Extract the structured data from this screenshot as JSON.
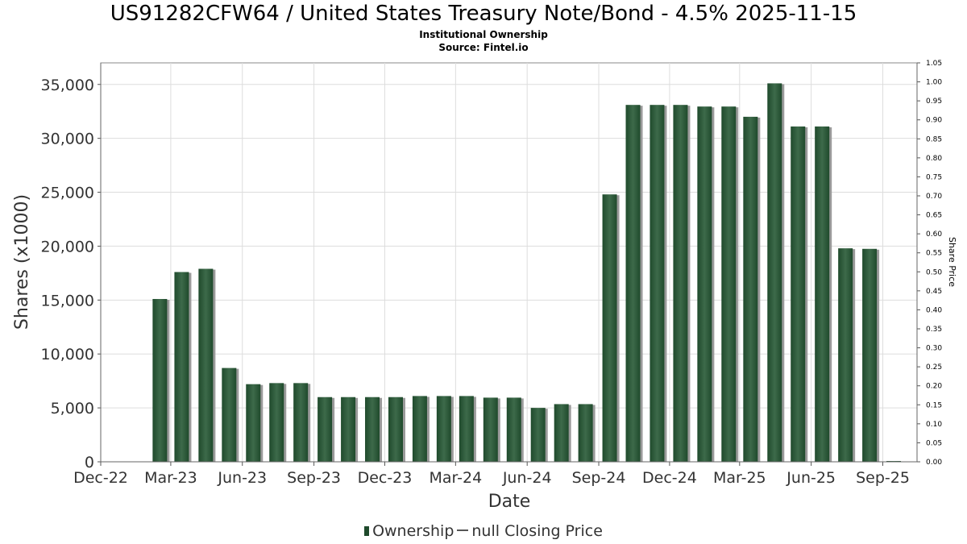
{
  "title": "US91282CFW64 / United States Treasury Note/Bond - 4.5% 2025-11-15",
  "subtitle": "Institutional Ownership",
  "source": "Source: Fintel.io",
  "legend": {
    "ownership": "Ownership",
    "price": "null Closing Price"
  },
  "colors": {
    "bar": "#1f4a2c",
    "bar_highlight": "#3d6a4a",
    "bar_shadow": "#9a9a9a",
    "grid": "#dddddd"
  },
  "chart_data": {
    "type": "bar",
    "xlabel": "Date",
    "ylabel": "Shares (x1000)",
    "y2label": "Share Price",
    "ylim": [
      0,
      37000
    ],
    "y2lim": [
      0,
      1.05
    ],
    "yticks": [
      "0",
      "5,000",
      "10,000",
      "15,000",
      "20,000",
      "25,000",
      "30,000",
      "35,000"
    ],
    "y2ticks": [
      "0.00",
      "0.05",
      "0.10",
      "0.15",
      "0.20",
      "0.25",
      "0.30",
      "0.35",
      "0.40",
      "0.45",
      "0.50",
      "0.55",
      "0.60",
      "0.65",
      "0.70",
      "0.75",
      "0.80",
      "0.85",
      "0.90",
      "0.95",
      "1.00",
      "1.05"
    ],
    "xticks": [
      "Dec-22",
      "Mar-23",
      "Jun-23",
      "Sep-23",
      "Dec-23",
      "Mar-24",
      "Jun-24",
      "Sep-24",
      "Dec-24",
      "Mar-25",
      "Jun-25",
      "Sep-25"
    ],
    "xdomain": [
      "2022-12-01",
      "2025-10-15"
    ],
    "series": [
      {
        "name": "Ownership",
        "points": [
          {
            "date": "2023-02-15",
            "value": 15100
          },
          {
            "date": "2023-03-15",
            "value": 17600
          },
          {
            "date": "2023-04-15",
            "value": 17900
          },
          {
            "date": "2023-05-15",
            "value": 8700
          },
          {
            "date": "2023-06-15",
            "value": 7200
          },
          {
            "date": "2023-07-15",
            "value": 7300
          },
          {
            "date": "2023-08-15",
            "value": 7300
          },
          {
            "date": "2023-09-15",
            "value": 6000
          },
          {
            "date": "2023-10-15",
            "value": 6000
          },
          {
            "date": "2023-11-15",
            "value": 6000
          },
          {
            "date": "2023-12-15",
            "value": 6000
          },
          {
            "date": "2024-01-15",
            "value": 6100
          },
          {
            "date": "2024-02-15",
            "value": 6100
          },
          {
            "date": "2024-03-15",
            "value": 6100
          },
          {
            "date": "2024-04-15",
            "value": 5950
          },
          {
            "date": "2024-05-15",
            "value": 5950
          },
          {
            "date": "2024-06-15",
            "value": 5000
          },
          {
            "date": "2024-07-15",
            "value": 5350
          },
          {
            "date": "2024-08-15",
            "value": 5350
          },
          {
            "date": "2024-09-15",
            "value": 24800
          },
          {
            "date": "2024-10-15",
            "value": 33100
          },
          {
            "date": "2024-11-15",
            "value": 33100
          },
          {
            "date": "2024-12-15",
            "value": 33100
          },
          {
            "date": "2025-01-15",
            "value": 32950
          },
          {
            "date": "2025-02-15",
            "value": 32950
          },
          {
            "date": "2025-03-15",
            "value": 32000
          },
          {
            "date": "2025-04-15",
            "value": 35100
          },
          {
            "date": "2025-05-15",
            "value": 31100
          },
          {
            "date": "2025-06-15",
            "value": 31100
          },
          {
            "date": "2025-07-15",
            "value": 19800
          },
          {
            "date": "2025-08-15",
            "value": 19750
          },
          {
            "date": "2025-09-15",
            "value": 0
          }
        ]
      }
    ],
    "grid": true,
    "legend_position": "bottom"
  }
}
